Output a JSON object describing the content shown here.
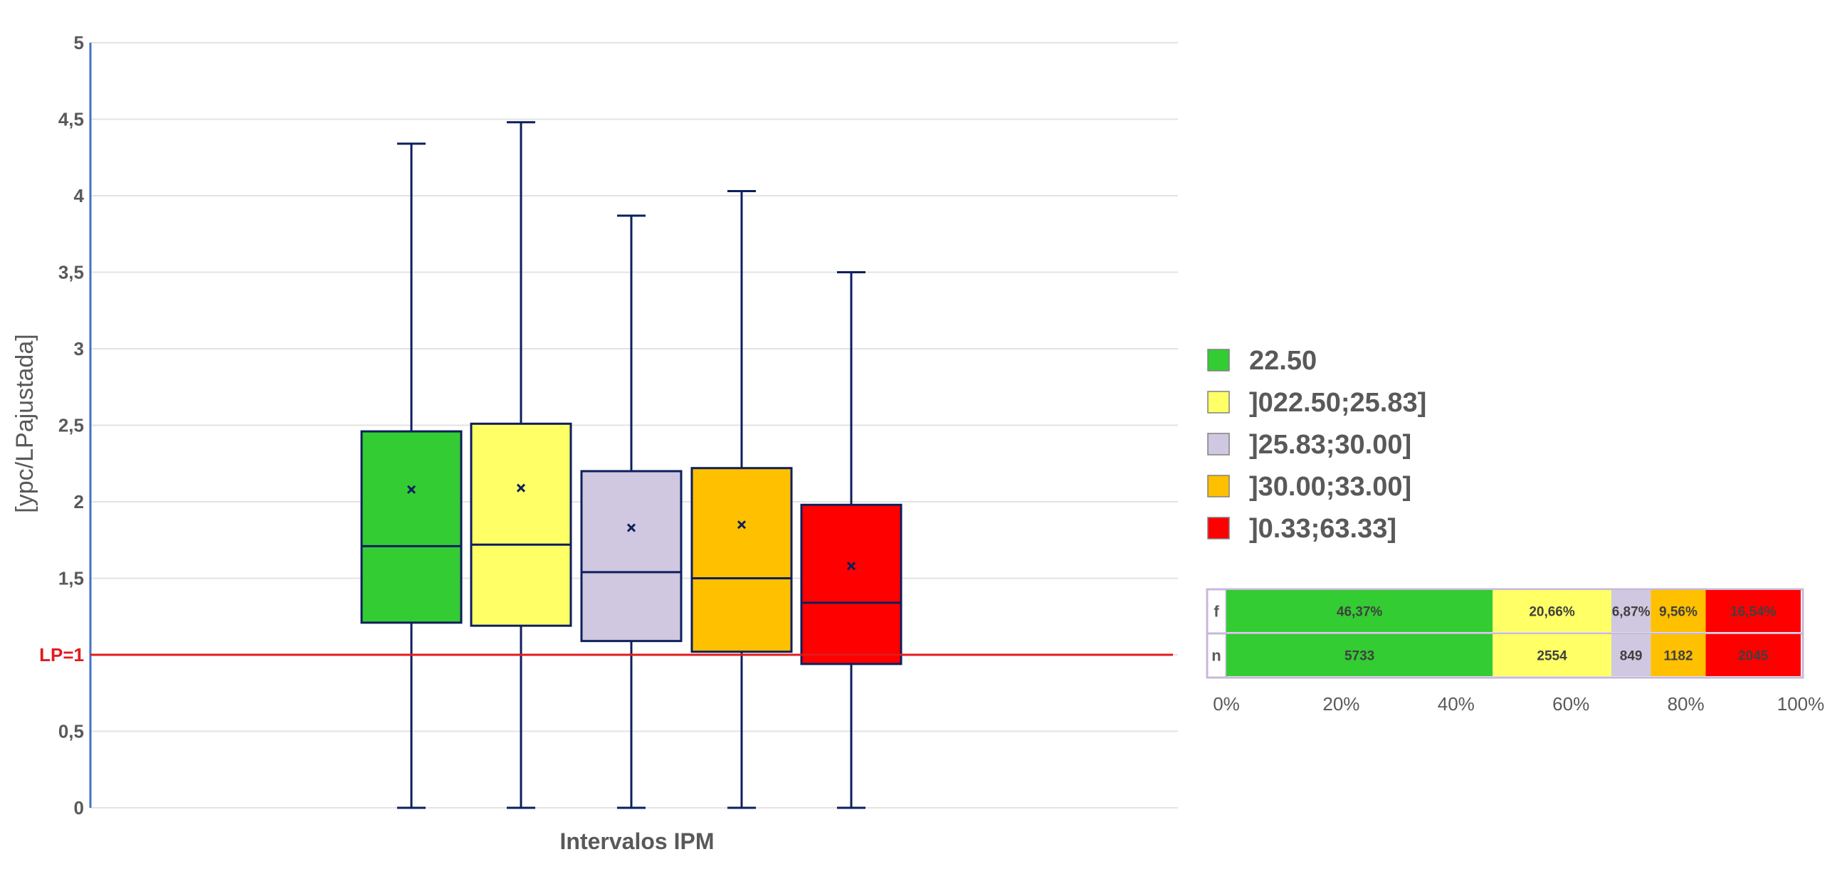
{
  "chart_data": [
    {
      "type": "boxplot",
      "xlabel": "Intervalos IPM",
      "ylabel": "[ypc/LPajustada]",
      "ylim": [
        0,
        5
      ],
      "yticks": [
        "0",
        "0,5",
        "1",
        "1,5",
        "2",
        "2,5",
        "3",
        "3,5",
        "4",
        "4,5",
        "5"
      ],
      "grid": true,
      "reference_line": {
        "label": "LP=1",
        "value": 1,
        "color": "#e31a1c"
      },
      "series": [
        {
          "name": "22.50",
          "color": "#33cc33",
          "min": 0,
          "q1": 1.21,
          "median": 1.71,
          "q3": 2.46,
          "max": 4.34,
          "mean": 2.08
        },
        {
          "name": "]022.50;25.83]",
          "color": "#ffff66",
          "min": 0,
          "q1": 1.19,
          "median": 1.72,
          "q3": 2.51,
          "max": 4.48,
          "mean": 2.09
        },
        {
          "name": "]25.83;30.00]",
          "color": "#d0c8e0",
          "min": 0,
          "q1": 1.09,
          "median": 1.54,
          "q3": 2.2,
          "max": 3.87,
          "mean": 1.83
        },
        {
          "name": "]30.00;33.00]",
          "color": "#ffc000",
          "min": 0,
          "q1": 1.02,
          "median": 1.5,
          "q3": 2.22,
          "max": 4.03,
          "mean": 1.85
        },
        {
          "name": "]0.33;63.33]",
          "color": "#ff0000",
          "min": 0,
          "q1": 0.94,
          "median": 1.34,
          "q3": 1.98,
          "max": 3.5,
          "mean": 1.58
        }
      ],
      "legend_position": "right"
    },
    {
      "type": "stacked-bar-100",
      "rows": [
        {
          "label": "f",
          "values": [
            46.37,
            20.66,
            6.87,
            9.56,
            16.54
          ],
          "labels": [
            "46,37%",
            "20,66%",
            "6,87%",
            "9,56%",
            "16,54%"
          ]
        },
        {
          "label": "n",
          "values": [
            5733,
            2554,
            849,
            1182,
            2045
          ],
          "labels": [
            "5733",
            "2554",
            "849",
            "1182",
            "2045"
          ]
        }
      ],
      "colors": [
        "#33cc33",
        "#ffff66",
        "#d0c8e0",
        "#ffc000",
        "#ff0000"
      ],
      "xticks": [
        "0%",
        "20%",
        "40%",
        "60%",
        "80%",
        "100%"
      ],
      "xlim": [
        0,
        100
      ]
    }
  ]
}
